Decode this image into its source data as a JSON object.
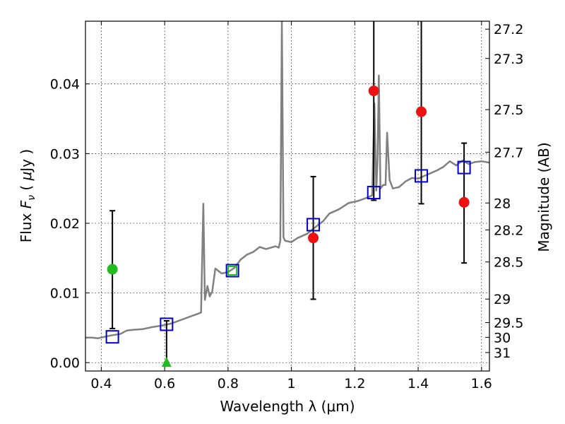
{
  "chart_data": {
    "type": "scatter",
    "xlabel": "Wavelength  λ (μm)",
    "ylabel_parts": {
      "pre": "Flux  ",
      "italic": "F",
      "sub": "ν",
      "post_open": "  ( ",
      "mu": "μ",
      "post": "Jy )"
    },
    "y2label": "Magnitude (AB)",
    "xlim": [
      0.35,
      1.625
    ],
    "ylim": [
      -0.0012,
      0.049
    ],
    "grid": true,
    "x_ticks": [
      {
        "v": 0.4,
        "label": "0.4"
      },
      {
        "v": 0.6,
        "label": "0.6"
      },
      {
        "v": 0.8,
        "label": "0.8"
      },
      {
        "v": 1.0,
        "label": "1"
      },
      {
        "v": 1.2,
        "label": "1.2"
      },
      {
        "v": 1.4,
        "label": "1.4"
      },
      {
        "v": 1.6,
        "label": "1.6"
      }
    ],
    "y_ticks": [
      {
        "v": 0.0,
        "label": "0.00"
      },
      {
        "v": 0.01,
        "label": "0.01"
      },
      {
        "v": 0.02,
        "label": "0.02"
      },
      {
        "v": 0.03,
        "label": "0.03"
      },
      {
        "v": 0.04,
        "label": "0.04"
      }
    ],
    "mag_ticks": [
      {
        "v": 0.04786,
        "label": "27.2"
      },
      {
        "v": 0.04365,
        "label": "27.3"
      },
      {
        "v": 0.03631,
        "label": "27.5"
      },
      {
        "v": 0.0302,
        "label": "27.7"
      },
      {
        "v": 0.02291,
        "label": "28"
      },
      {
        "v": 0.01905,
        "label": "28.2"
      },
      {
        "v": 0.01445,
        "label": "28.5"
      },
      {
        "v": 0.00912,
        "label": "29"
      },
      {
        "v": 0.00575,
        "label": "29.5"
      },
      {
        "v": 0.00363,
        "label": "30"
      },
      {
        "v": 0.00145,
        "label": "31"
      }
    ],
    "model_spectrum": {
      "color": "#808080",
      "points": [
        [
          0.35,
          0.0036
        ],
        [
          0.37,
          0.0036
        ],
        [
          0.39,
          0.0035
        ],
        [
          0.41,
          0.0037
        ],
        [
          0.43,
          0.0039
        ],
        [
          0.46,
          0.0041
        ],
        [
          0.48,
          0.0046
        ],
        [
          0.5,
          0.0047
        ],
        [
          0.53,
          0.0048
        ],
        [
          0.56,
          0.0051
        ],
        [
          0.59,
          0.0053
        ],
        [
          0.62,
          0.0056
        ],
        [
          0.65,
          0.0061
        ],
        [
          0.68,
          0.0066
        ],
        [
          0.71,
          0.0071
        ],
        [
          0.715,
          0.0072
        ],
        [
          0.722,
          0.0228
        ],
        [
          0.727,
          0.009
        ],
        [
          0.735,
          0.011
        ],
        [
          0.742,
          0.0095
        ],
        [
          0.75,
          0.0102
        ],
        [
          0.76,
          0.0135
        ],
        [
          0.78,
          0.0128
        ],
        [
          0.8,
          0.013
        ],
        [
          0.82,
          0.0136
        ],
        [
          0.84,
          0.0148
        ],
        [
          0.86,
          0.0155
        ],
        [
          0.88,
          0.0159
        ],
        [
          0.9,
          0.0166
        ],
        [
          0.92,
          0.0163
        ],
        [
          0.95,
          0.0167
        ],
        [
          0.96,
          0.0165
        ],
        [
          0.965,
          0.0175
        ],
        [
          0.97,
          0.049
        ],
        [
          0.975,
          0.018
        ],
        [
          0.98,
          0.0175
        ],
        [
          1.0,
          0.0173
        ],
        [
          1.02,
          0.0179
        ],
        [
          1.05,
          0.0185
        ],
        [
          1.08,
          0.0196
        ],
        [
          1.1,
          0.0203
        ],
        [
          1.12,
          0.0214
        ],
        [
          1.15,
          0.022
        ],
        [
          1.18,
          0.0229
        ],
        [
          1.21,
          0.0232
        ],
        [
          1.24,
          0.0237
        ],
        [
          1.255,
          0.024
        ],
        [
          1.262,
          0.0372
        ],
        [
          1.268,
          0.0247
        ],
        [
          1.272,
          0.029
        ],
        [
          1.276,
          0.0412
        ],
        [
          1.281,
          0.025
        ],
        [
          1.29,
          0.0255
        ],
        [
          1.297,
          0.0255
        ],
        [
          1.302,
          0.033
        ],
        [
          1.31,
          0.0262
        ],
        [
          1.32,
          0.025
        ],
        [
          1.34,
          0.0252
        ],
        [
          1.36,
          0.026
        ],
        [
          1.38,
          0.0265
        ],
        [
          1.4,
          0.0264
        ],
        [
          1.42,
          0.0268
        ],
        [
          1.44,
          0.0272
        ],
        [
          1.46,
          0.0276
        ],
        [
          1.48,
          0.0281
        ],
        [
          1.5,
          0.0289
        ],
        [
          1.52,
          0.0283
        ],
        [
          1.54,
          0.029
        ],
        [
          1.56,
          0.0285
        ],
        [
          1.58,
          0.0288
        ],
        [
          1.6,
          0.0289
        ],
        [
          1.625,
          0.0287
        ]
      ]
    },
    "model_photometry": {
      "marker": "open-square",
      "points": [
        {
          "x": 0.435,
          "y": 0.0037,
          "color": "#0000cc"
        },
        {
          "x": 0.606,
          "y": 0.0055,
          "color": "#0000cc"
        },
        {
          "x": 0.814,
          "y": 0.0132,
          "color": "#0000cc"
        },
        {
          "x": 1.069,
          "y": 0.0198,
          "color": "#0000cc"
        },
        {
          "x": 1.26,
          "y": 0.0244,
          "color": "#0000cc"
        },
        {
          "x": 1.41,
          "y": 0.0268,
          "color": "#0000cc"
        },
        {
          "x": 1.545,
          "y": 0.028,
          "color": "#0000cc"
        }
      ]
    },
    "observed_photometry": [
      {
        "x": 0.435,
        "y": 0.0134,
        "yerr_low": 0.0049,
        "yerr_high": 0.0218,
        "marker": "circle",
        "color": "#22bb22"
      },
      {
        "x": 0.606,
        "y": 0.0,
        "yerr_low": 0.0,
        "yerr_high": 0.006,
        "marker": "triangle-up",
        "color": "#22bb22"
      },
      {
        "x": 0.814,
        "y": 0.0132,
        "marker": "open-square",
        "color": "#22bb22"
      },
      {
        "x": 1.069,
        "y": 0.0179,
        "yerr_low": 0.0091,
        "yerr_high": 0.0267,
        "marker": "circle",
        "color": "#ee1111"
      },
      {
        "x": 1.26,
        "y": 0.039,
        "yerr_low": 0.0233,
        "yerr_high": 0.05,
        "marker": "circle",
        "color": "#ee1111"
      },
      {
        "x": 1.41,
        "y": 0.036,
        "yerr_low": 0.0228,
        "yerr_high": 0.05,
        "marker": "circle",
        "color": "#ee1111"
      },
      {
        "x": 1.545,
        "y": 0.023,
        "yerr_low": 0.0143,
        "yerr_high": 0.0315,
        "marker": "circle",
        "color": "#ee1111"
      }
    ]
  }
}
